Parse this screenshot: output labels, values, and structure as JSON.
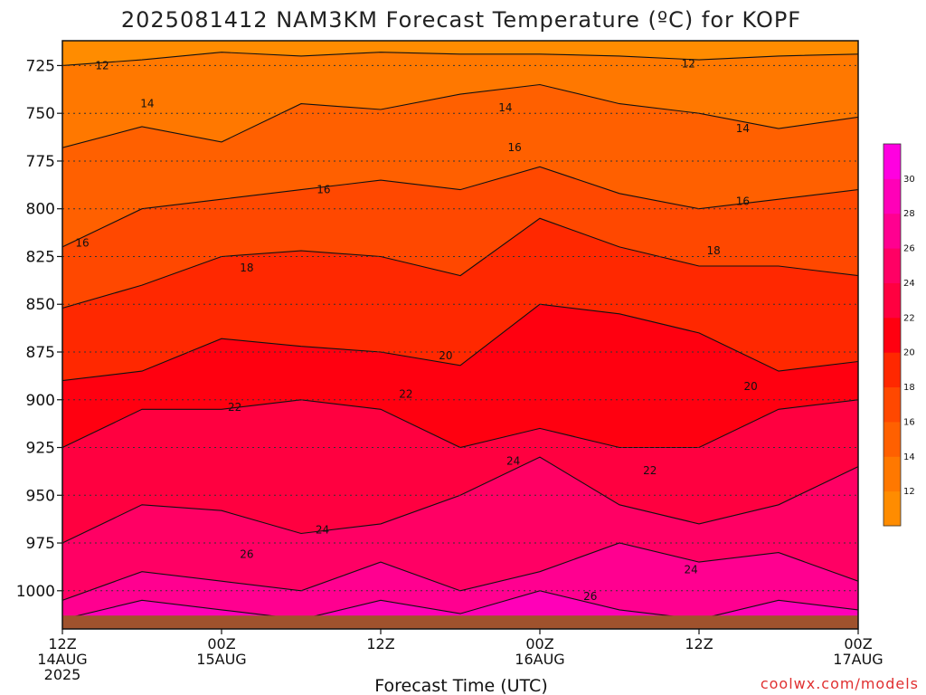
{
  "chart_data": {
    "type": "heatmap",
    "title": "2025081412 NAM3KM Forecast Temperature (ºC) for KOPF",
    "xlabel": "Forecast Time (UTC)",
    "ylabel": "",
    "credit": "coolwx.com/models",
    "x_hours": [
      0,
      12,
      24,
      36,
      48,
      60
    ],
    "x_ticks": [
      {
        "hour": 0,
        "line1": "12Z",
        "line2": "14AUG",
        "line3": "2025"
      },
      {
        "hour": 12,
        "line1": "00Z",
        "line2": "15AUG",
        "line3": ""
      },
      {
        "hour": 24,
        "line1": "12Z",
        "line2": "",
        "line3": ""
      },
      {
        "hour": 36,
        "line1": "00Z",
        "line2": "16AUG",
        "line3": ""
      },
      {
        "hour": 48,
        "line1": "12Z",
        "line2": "",
        "line3": ""
      },
      {
        "hour": 60,
        "line1": "00Z",
        "line2": "17AUG",
        "line3": ""
      }
    ],
    "y_ticks": [
      725,
      750,
      775,
      800,
      825,
      850,
      875,
      900,
      925,
      950,
      975,
      1000
    ],
    "y_range_hpa": [
      712,
      1020
    ],
    "x_range_hours": [
      0,
      60
    ],
    "y_inverted": true,
    "grid": "dotted",
    "colorbar": {
      "placement": "right",
      "levels": [
        10,
        12,
        14,
        16,
        18,
        20,
        22,
        24,
        26,
        28,
        30,
        32
      ],
      "tick_labels": [
        12,
        14,
        16,
        18,
        20,
        22,
        24,
        26,
        28,
        30
      ],
      "colors": [
        "#ff8c00",
        "#ff7800",
        "#ff6000",
        "#ff4800",
        "#ff2800",
        "#ff0010",
        "#ff0040",
        "#ff0064",
        "#ff0090",
        "#ff00b8",
        "#ff00e0"
      ]
    },
    "ground_color": "#a0522d",
    "isotherm_profile": {
      "hours": [
        0,
        6,
        12,
        18,
        24,
        30,
        36,
        42,
        48,
        54,
        60
      ],
      "levels_hpa": {
        "12": [
          725,
          722,
          718,
          720,
          718,
          719,
          719,
          720,
          722,
          720,
          719
        ],
        "14": [
          768,
          757,
          765,
          745,
          748,
          740,
          735,
          745,
          750,
          758,
          752
        ],
        "16": [
          820,
          800,
          795,
          790,
          785,
          790,
          778,
          792,
          800,
          795,
          790
        ],
        "18": [
          852,
          840,
          825,
          822,
          825,
          835,
          805,
          820,
          830,
          830,
          835
        ],
        "20": [
          890,
          885,
          868,
          872,
          875,
          882,
          850,
          855,
          865,
          885,
          880
        ],
        "22": [
          925,
          905,
          905,
          900,
          905,
          925,
          915,
          925,
          925,
          905,
          900
        ],
        "24": [
          975,
          955,
          958,
          970,
          965,
          950,
          930,
          955,
          965,
          955,
          935
        ],
        "26": [
          1005,
          990,
          995,
          1000,
          985,
          1000,
          990,
          975,
          985,
          980,
          995
        ],
        "28": [
          1015,
          1005,
          1010,
          1015,
          1005,
          1012,
          1000,
          1010,
          1015,
          1005,
          1010
        ]
      },
      "labels": [
        {
          "value": "12",
          "hour": 3,
          "hpa": 725
        },
        {
          "value": "12",
          "hour": 47.2,
          "hpa": 724
        },
        {
          "value": "14",
          "hour": 6.4,
          "hpa": 745
        },
        {
          "value": "14",
          "hour": 33.4,
          "hpa": 747
        },
        {
          "value": "14",
          "hour": 51.3,
          "hpa": 758
        },
        {
          "value": "16",
          "hour": 1.5,
          "hpa": 818
        },
        {
          "value": "16",
          "hour": 19.7,
          "hpa": 790
        },
        {
          "value": "16",
          "hour": 34.1,
          "hpa": 768
        },
        {
          "value": "16",
          "hour": 51.3,
          "hpa": 796
        },
        {
          "value": "18",
          "hour": 13.9,
          "hpa": 831
        },
        {
          "value": "18",
          "hour": 49.1,
          "hpa": 822
        },
        {
          "value": "20",
          "hour": 28.9,
          "hpa": 877
        },
        {
          "value": "20",
          "hour": 51.9,
          "hpa": 893
        },
        {
          "value": "22",
          "hour": 13.0,
          "hpa": 904
        },
        {
          "value": "22",
          "hour": 25.9,
          "hpa": 897
        },
        {
          "value": "22",
          "hour": 44.3,
          "hpa": 937
        },
        {
          "value": "24",
          "hour": 34.0,
          "hpa": 932
        },
        {
          "value": "24",
          "hour": 19.6,
          "hpa": 968
        },
        {
          "value": "24",
          "hour": 47.4,
          "hpa": 989
        },
        {
          "value": "26",
          "hour": 13.9,
          "hpa": 981
        },
        {
          "value": "26",
          "hour": 39.8,
          "hpa": 1003
        }
      ]
    }
  }
}
